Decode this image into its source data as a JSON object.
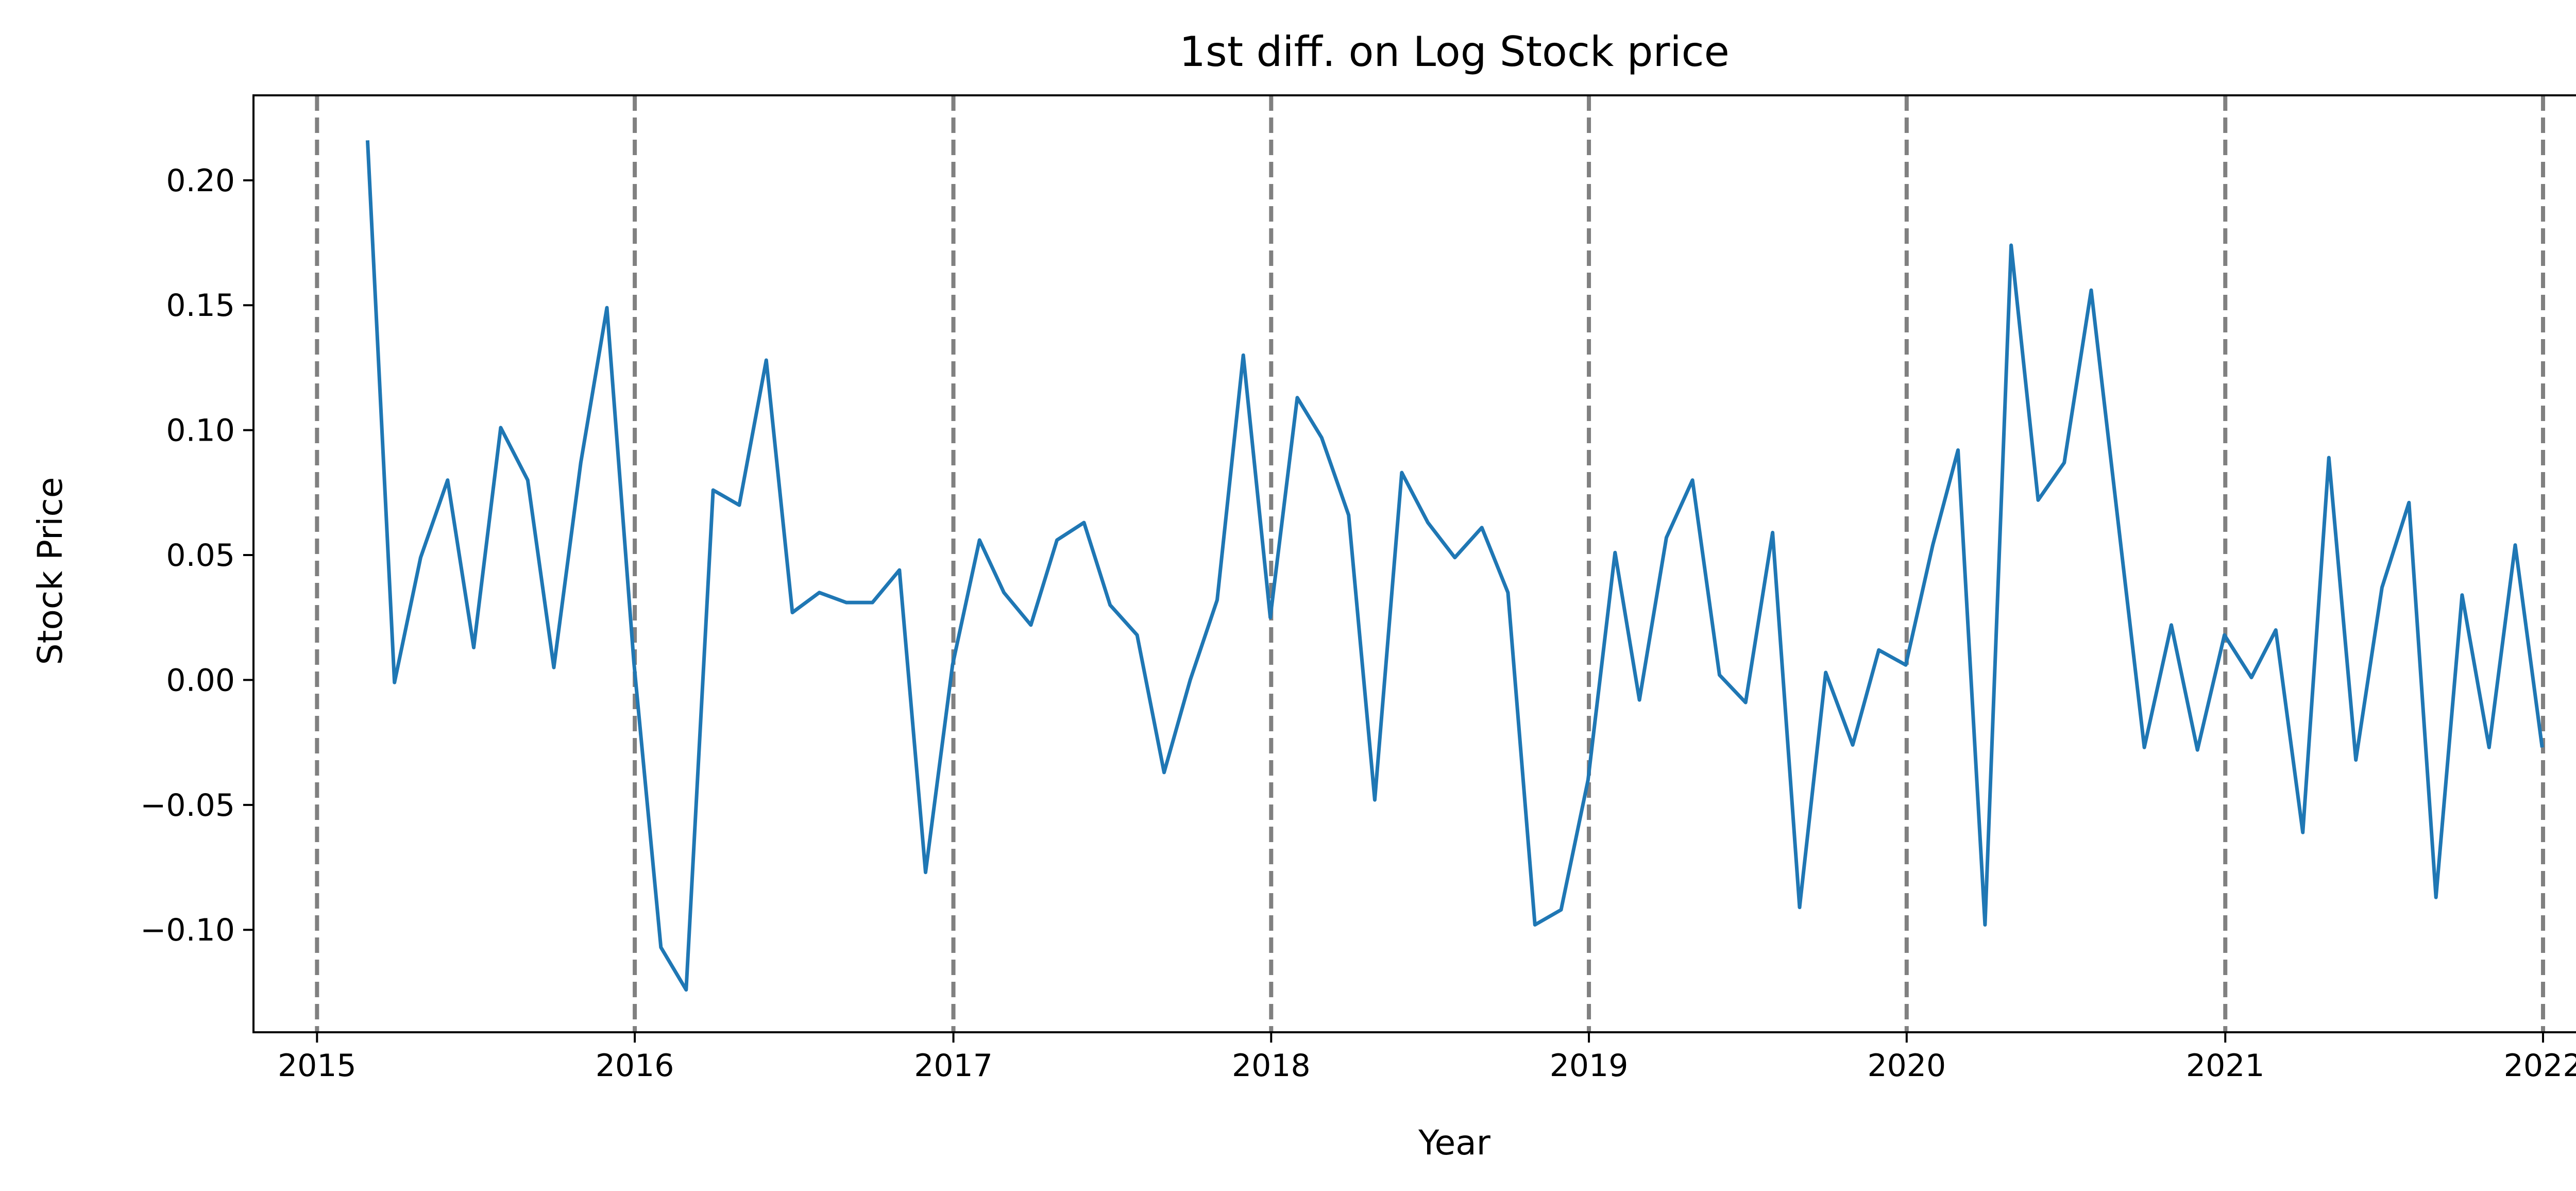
{
  "chart_data": {
    "type": "line",
    "title": "1st diff. on Log Stock price",
    "xlabel": "Year",
    "ylabel": "Stock Price",
    "xlim": [
      "2014-10-20",
      "2022-05-10"
    ],
    "ylim": [
      -0.141,
      0.234
    ],
    "grid": false,
    "x_ticks": [
      "2015",
      "2016",
      "2017",
      "2018",
      "2019",
      "2020",
      "2021",
      "2022"
    ],
    "y_ticks": [
      "0.20",
      "0.15",
      "0.10",
      "0.05",
      "0.00",
      "−0.05",
      "−0.10"
    ],
    "y_tick_values": [
      0.2,
      0.15,
      0.1,
      0.05,
      0.0,
      -0.05,
      -0.1
    ],
    "vlines": [
      "2015-01-01",
      "2016-01-01",
      "2017-01-01",
      "2018-01-01",
      "2019-01-01",
      "2020-01-01",
      "2021-01-01",
      "2022-01-01"
    ],
    "colors": {
      "line": "#1f77b4",
      "vline": "#808080",
      "axes": "#000000"
    },
    "series": [
      {
        "x": [
          "2015-02-28",
          "2015-03-31",
          "2015-04-30",
          "2015-05-31",
          "2015-06-30",
          "2015-07-31",
          "2015-08-31",
          "2015-09-30",
          "2015-10-31",
          "2015-11-30",
          "2015-12-31",
          "2016-01-31",
          "2016-02-29",
          "2016-03-31",
          "2016-04-30",
          "2016-05-31",
          "2016-06-30",
          "2016-07-31",
          "2016-08-31",
          "2016-09-30",
          "2016-10-31",
          "2016-11-30",
          "2016-12-31",
          "2017-01-31",
          "2017-02-28",
          "2017-03-31",
          "2017-04-30",
          "2017-05-31",
          "2017-06-30",
          "2017-07-31",
          "2017-08-31",
          "2017-09-30",
          "2017-10-31",
          "2017-11-30",
          "2017-12-31",
          "2018-01-31",
          "2018-02-28",
          "2018-03-31",
          "2018-04-30",
          "2018-05-31",
          "2018-06-30",
          "2018-07-31",
          "2018-08-31",
          "2018-09-30",
          "2018-10-31",
          "2018-11-30",
          "2018-12-31",
          "2019-01-31",
          "2019-02-28",
          "2019-03-31",
          "2019-04-30",
          "2019-05-31",
          "2019-06-30",
          "2019-07-31",
          "2019-08-31",
          "2019-09-30",
          "2019-10-31",
          "2019-11-30",
          "2019-12-31",
          "2020-01-31",
          "2020-02-29",
          "2020-03-31",
          "2020-04-30",
          "2020-05-31",
          "2020-06-30",
          "2020-07-31",
          "2020-08-31",
          "2020-09-30",
          "2020-10-31",
          "2020-11-30",
          "2020-12-31",
          "2021-01-31",
          "2021-02-28",
          "2021-03-31",
          "2021-04-30",
          "2021-05-31",
          "2021-06-30",
          "2021-07-31",
          "2021-08-31",
          "2021-09-30",
          "2021-10-31",
          "2021-11-30",
          "2021-12-31"
        ],
        "values": [
          0.216,
          -0.001,
          0.049,
          0.08,
          0.013,
          0.101,
          0.08,
          0.005,
          0.087,
          0.149,
          0.007,
          -0.107,
          -0.124,
          0.076,
          0.07,
          0.128,
          0.027,
          0.035,
          0.031,
          0.031,
          0.044,
          -0.077,
          0.006,
          0.056,
          0.035,
          0.022,
          0.056,
          0.063,
          0.03,
          0.018,
          -0.037,
          0.0,
          0.032,
          0.13,
          0.025,
          0.113,
          0.097,
          0.066,
          -0.048,
          0.083,
          0.063,
          0.049,
          0.061,
          0.035,
          -0.098,
          -0.092,
          -0.04,
          0.051,
          -0.008,
          0.057,
          0.08,
          0.002,
          -0.009,
          0.059,
          -0.091,
          0.003,
          -0.026,
          0.012,
          0.006,
          0.054,
          0.092,
          -0.098,
          0.174,
          0.072,
          0.087,
          0.156,
          0.063,
          -0.027,
          0.022,
          -0.028,
          0.018,
          0.001,
          0.02,
          -0.061,
          0.089,
          -0.032,
          0.037,
          0.071,
          -0.087,
          0.034,
          -0.027,
          0.054,
          -0.027
        ]
      }
    ]
  }
}
